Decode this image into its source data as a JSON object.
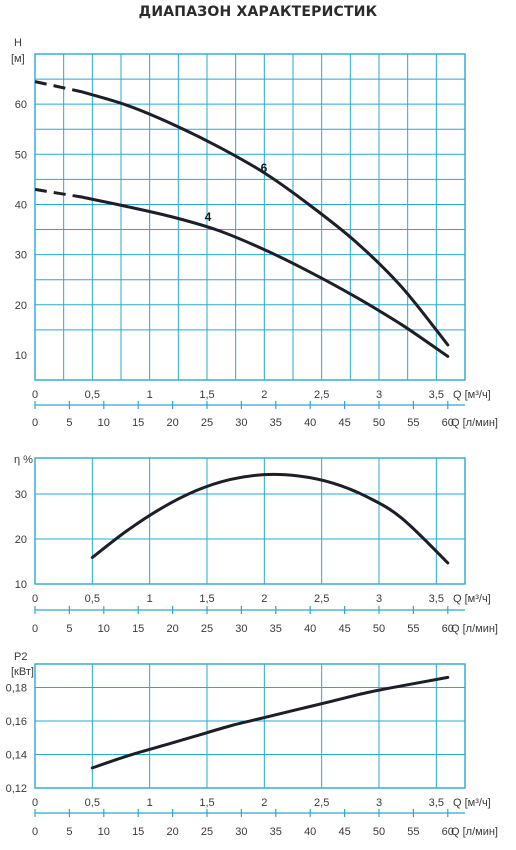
{
  "title": "ДИАПАЗОН ХАРАКТЕРИСТИК",
  "colors": {
    "grid": "#29a9cf",
    "curve": "#1e1e28",
    "text": "#3a3a3a"
  },
  "chart_data": [
    {
      "type": "line",
      "ylabel": "H",
      "yunit": "[м]",
      "xlabel": "Q [м³/ч]",
      "x2label": "Q [л/мин]",
      "xlim": [
        0,
        3.75
      ],
      "x_ticks": [
        "0",
        "0,5",
        "1",
        "1,5",
        "2",
        "2,5",
        "3",
        "3,5"
      ],
      "x2_ticks": [
        "0",
        "5",
        "10",
        "15",
        "20",
        "25",
        "30",
        "35",
        "40",
        "45",
        "50",
        "55",
        "60"
      ],
      "ylim": [
        5,
        70
      ],
      "y_ticks": [
        "10",
        "20",
        "30",
        "40",
        "50",
        "60"
      ],
      "series": [
        {
          "name": "6",
          "dashed_until": 0.4,
          "points": [
            [
              0,
              64.5
            ],
            [
              0.4,
              62.5
            ],
            [
              0.8,
              59.8
            ],
            [
              1.2,
              56.0
            ],
            [
              1.6,
              51.5
            ],
            [
              2.0,
              46.3
            ],
            [
              2.4,
              39.8
            ],
            [
              2.8,
              32.5
            ],
            [
              3.2,
              23.5
            ],
            [
              3.6,
              12.0
            ]
          ]
        },
        {
          "name": "4",
          "dashed_until": 0.4,
          "points": [
            [
              0,
              43.0
            ],
            [
              0.4,
              41.5
            ],
            [
              0.8,
              39.6
            ],
            [
              1.2,
              37.5
            ],
            [
              1.6,
              34.8
            ],
            [
              2.0,
              31.0
            ],
            [
              2.4,
              26.5
            ],
            [
              2.8,
              21.5
            ],
            [
              3.2,
              16.0
            ],
            [
              3.6,
              9.7
            ]
          ]
        }
      ]
    },
    {
      "type": "line",
      "ylabel": "η %",
      "xlabel": "Q [м³/ч]",
      "x2label": "Q [л/мин]",
      "xlim": [
        0,
        3.75
      ],
      "x_ticks": [
        "0",
        "0,5",
        "1",
        "1,5",
        "2",
        "2,5",
        "3",
        "3,5"
      ],
      "x2_ticks": [
        "0",
        "5",
        "10",
        "15",
        "20",
        "25",
        "30",
        "35",
        "40",
        "45",
        "50",
        "55",
        "60"
      ],
      "ylim": [
        10,
        38
      ],
      "y_ticks": [
        "10",
        "20",
        "30"
      ],
      "series": [
        {
          "points": [
            [
              0.5,
              15.9
            ],
            [
              0.8,
              21.8
            ],
            [
              1.1,
              26.8
            ],
            [
              1.4,
              30.7
            ],
            [
              1.7,
              33.2
            ],
            [
              2.0,
              34.3
            ],
            [
              2.3,
              34.0
            ],
            [
              2.6,
              32.4
            ],
            [
              2.9,
              29.3
            ],
            [
              3.2,
              24.6
            ],
            [
              3.6,
              14.7
            ]
          ]
        }
      ]
    },
    {
      "type": "line",
      "ylabel": "P2",
      "yunit": "[кВт]",
      "xlabel": "Q [м³/ч]",
      "x2label": "Q [л/мин]",
      "xlim": [
        0,
        3.75
      ],
      "x_ticks": [
        "0",
        "0,5",
        "1",
        "1,5",
        "2",
        "2,5",
        "3",
        "3,5"
      ],
      "x2_ticks": [
        "0",
        "5",
        "10",
        "15",
        "20",
        "25",
        "30",
        "35",
        "40",
        "45",
        "50",
        "55",
        "60"
      ],
      "ylim": [
        0.12,
        0.194
      ],
      "y_ticks": [
        "0,12",
        "0,14",
        "0,16",
        "0,18"
      ],
      "series": [
        {
          "points": [
            [
              0.5,
              0.132
            ],
            [
              0.8,
              0.139
            ],
            [
              1.1,
              0.145
            ],
            [
              1.4,
              0.151
            ],
            [
              1.7,
              0.157
            ],
            [
              2.0,
              0.162
            ],
            [
              2.3,
              0.167
            ],
            [
              2.6,
              0.172
            ],
            [
              2.9,
              0.177
            ],
            [
              3.2,
              0.181
            ],
            [
              3.6,
              0.186
            ]
          ]
        }
      ]
    }
  ]
}
